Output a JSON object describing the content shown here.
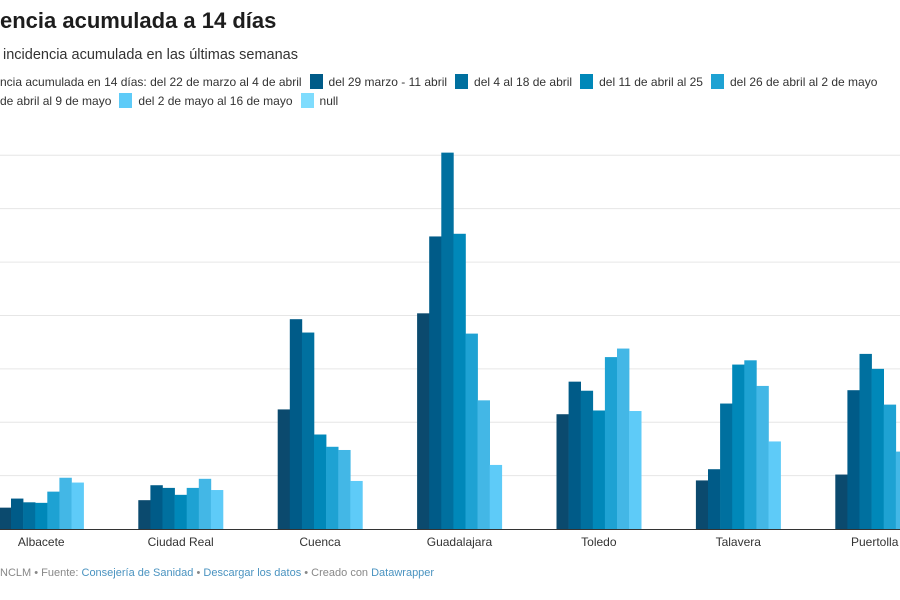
{
  "header": {
    "title": "encia acumulada a 14 días",
    "subtitle": "incidencia acumulada en las últimas semanas"
  },
  "footer": {
    "prefix": "NCLM • Fuente: ",
    "source_link": "Consejería de Sanidad",
    "sep1": " • ",
    "download_link": "Descargar los datos",
    "sep2": " • Creado con ",
    "datawrapper_link": "Datawrapper"
  },
  "chart_data": {
    "type": "bar",
    "title": "",
    "xlabel": "",
    "ylabel": "",
    "ylim": [
      0,
      700
    ],
    "grid": true,
    "legend_position": "top",
    "categories": [
      "Albacete",
      "Ciudad Real",
      "Cuenca",
      "Guadalajara",
      "Toledo",
      "Talavera",
      "Puertolla"
    ],
    "series": [
      {
        "name": "ncia acumulada en 14 días: del 22 de marzo al 4 de abril",
        "color": "#0b4a6e",
        "values": [
          40,
          54,
          224,
          404,
          215,
          91,
          102
        ]
      },
      {
        "name": "del 29 marzo - 11 abril",
        "color": "#005b88",
        "values": [
          57,
          82,
          393,
          548,
          276,
          112,
          260
        ]
      },
      {
        "name": "del 4 al 18 de abril",
        "color": "#00709f",
        "values": [
          50,
          77,
          368,
          705,
          259,
          235,
          328
        ]
      },
      {
        "name": "del 11 de abril al 25",
        "color": "#0088b9",
        "values": [
          49,
          64,
          177,
          553,
          222,
          308,
          300
        ]
      },
      {
        "name": "del 26 de abril al 2 de mayo",
        "color": "#1ea2d3",
        "values": [
          70,
          77,
          154,
          366,
          322,
          316,
          233
        ]
      },
      {
        "name": "de abril al 9 de mayo",
        "color": "#43b7e6",
        "values": [
          96,
          94,
          148,
          241,
          338,
          268,
          145
        ]
      },
      {
        "name": "del 2 de mayo al 16 de mayo",
        "color": "#5ecbf8",
        "values": [
          87,
          73,
          90,
          120,
          221,
          164,
          null
        ]
      },
      {
        "name": "null",
        "color": "#7fdcfd",
        "values": [
          null,
          null,
          null,
          null,
          null,
          null,
          null
        ]
      }
    ]
  }
}
